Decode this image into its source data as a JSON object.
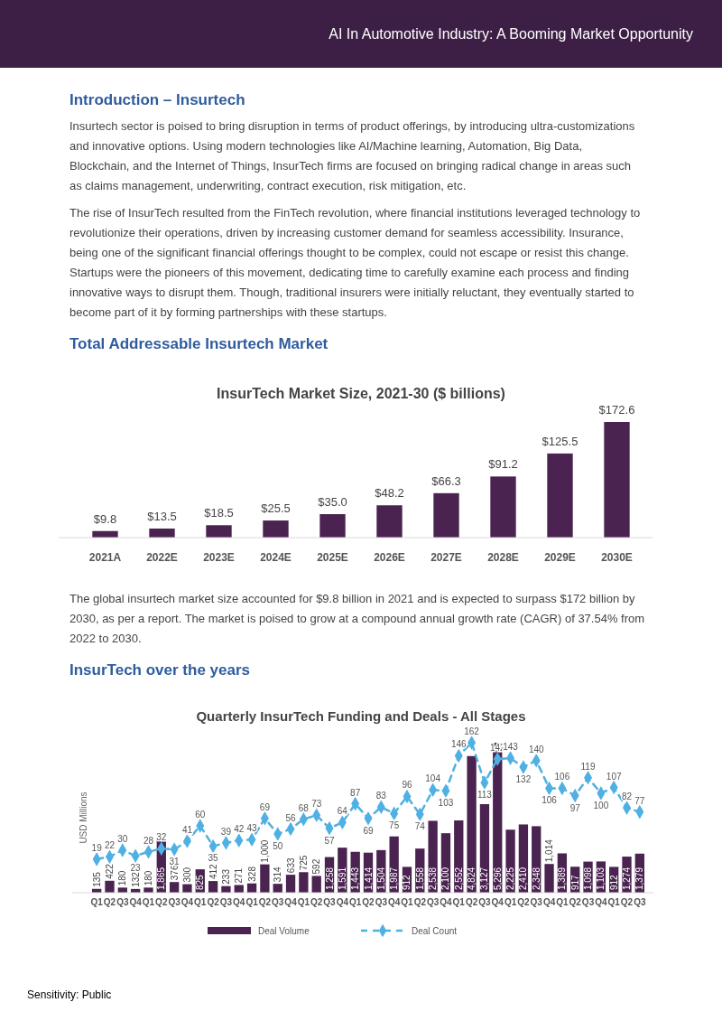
{
  "chart_data": [
    {
      "type": "bar",
      "title": "InsurTech Market Size, 2021-30 ($ billions)",
      "categories": [
        "2021A",
        "2022E",
        "2023E",
        "2024E",
        "2025E",
        "2026E",
        "2027E",
        "2028E",
        "2029E",
        "2030E"
      ],
      "values": [
        9.8,
        13.5,
        18.5,
        25.5,
        35.0,
        48.2,
        66.3,
        91.2,
        125.5,
        172.6
      ],
      "value_labels": [
        "$9.8",
        "$13.5",
        "$18.5",
        "$25.5",
        "$35.0",
        "$48.2",
        "$66.3",
        "$91.2",
        "$125.5",
        "$172.6"
      ],
      "color": "#4a2350",
      "annotations": [
        "AI In Automotive Industry: A Booming Market Opportunity",
        "Introduction – Insurtech",
        "Insurtech sector is poised to bring disruption in terms of product offerings, by introducing ultra-customizations and innovative options. Using modern technologies like AI/Machine learning, Automation, Big Data, Blockchain, and the Internet of Things, InsurTech firms are focused on bringing radical change in areas such as claims management, underwriting, contract execution, risk mitigation, etc.",
        "The rise of InsurTech resulted from the FinTech revolution, where financial institutions leveraged technology to revolutionize their operations, driven by increasing customer demand for seamless accessibility. Insurance, being one of the significant financial offerings thought to be complex, could not escape or resist this change. Startups were the pioneers of this movement, dedicating time to carefully examine each process and finding innovative ways to disrupt them. Though, traditional insurers were initially reluctant, they eventually started to become part of it by forming partnerships with these startups.",
        "Total Addressable Insurtech Market"
      ]
    },
    {
      "type": "bar",
      "title": "Quarterly InsurTech Funding and Deals - All Stages",
      "ylabel": "USD Millions",
      "legend": "bottom",
      "categories": [
        "Q1",
        "Q2",
        "Q3",
        "Q4",
        "Q1",
        "Q2",
        "Q3",
        "Q4",
        "Q1",
        "Q2",
        "Q3",
        "Q4",
        "Q1",
        "Q2",
        "Q3",
        "Q4",
        "Q1",
        "Q2",
        "Q3",
        "Q4",
        "Q1",
        "Q2",
        "Q3",
        "Q4",
        "Q1",
        "Q2",
        "Q3",
        "Q4",
        "Q1",
        "Q2",
        "Q3",
        "Q4",
        "Q1",
        "Q2",
        "Q3",
        "Q4",
        "Q1",
        "Q2",
        "Q3",
        "Q4",
        "Q1",
        "Q2",
        "Q3"
      ],
      "series": [
        {
          "name": "Deal Volume",
          "color": "#4a2350",
          "values": [
            135,
            422,
            180,
            132,
            180,
            1865,
            376,
            300,
            825,
            412,
            233,
            271,
            328,
            1000,
            314,
            633,
            725,
            592,
            1258,
            1591,
            1443,
            1414,
            1504,
            1987,
            912,
            1558,
            2538,
            2100,
            2552,
            4824,
            3127,
            5296,
            2225,
            2410,
            2348,
            1014,
            1389,
            917,
            1098,
            1103,
            912,
            1274,
            1379
          ],
          "value_labels": [
            "135",
            "422",
            "180",
            "132",
            "180",
            "1,865",
            "376",
            "300",
            "825",
            "412",
            "233",
            "271",
            "328",
            "1,000",
            "314",
            "633",
            "725",
            "592",
            "1,258",
            "1,591",
            "1,443",
            "1,414",
            "1,504",
            "1,987",
            "912",
            "1,558",
            "2,538",
            "2,100",
            "2,552",
            "4,824",
            "3,127",
            "5,296",
            "2,225",
            "2,410",
            "2,348",
            "1,014",
            "1,389",
            "917",
            "1,098",
            "1,103",
            "912",
            "1,274",
            "1,379"
          ]
        },
        {
          "name": "Deal Count",
          "type": "line",
          "axis": "y2",
          "color": "#4fb0e3",
          "marker": "diamond",
          "line_style": "dashed",
          "values": [
            19,
            22,
            30,
            23,
            28,
            32,
            31,
            41,
            60,
            35,
            39,
            42,
            43,
            69,
            50,
            56,
            68,
            73,
            57,
            64,
            87,
            69,
            83,
            75,
            96,
            74,
            104,
            103,
            146,
            162,
            113,
            142,
            143,
            132,
            140,
            106,
            106,
            97,
            119,
            100,
            107,
            82,
            77
          ],
          "value_labels": [
            "19",
            "22",
            "30",
            "23",
            "28",
            "32",
            "31",
            "41",
            "60",
            "35",
            "39",
            "42",
            "43",
            "69",
            "50",
            "56",
            "68",
            "73",
            "57",
            "64",
            "87",
            "69",
            "83",
            "75",
            "96",
            "74",
            "104",
            "103",
            "146",
            "162",
            "113",
            "142",
            "143",
            "132",
            "140",
            "106",
            "106",
            "97",
            "119",
            "100",
            "107",
            "82",
            "77"
          ]
        }
      ],
      "annotations": [
        "The global insurtech market size accounted for $9.8 billion in 2021 and is expected to surpass $172 billion by 2030, as per a report. The market is poised to grow at a compound annual growth rate (CAGR) of 37.54% from 2022 to 2030.",
        "InsurTech over the years",
        "Sensitivity: Public"
      ]
    }
  ]
}
